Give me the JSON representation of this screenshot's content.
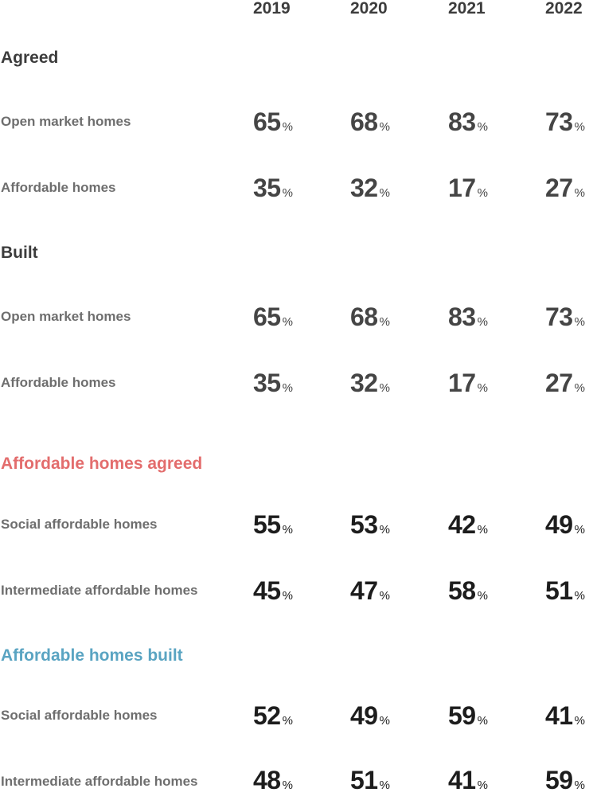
{
  "years": [
    "2019",
    "2020",
    "2021",
    "2022"
  ],
  "unit": "%",
  "colors": {
    "heading_dark": "#3c3c3c",
    "heading_agreed": "#e36d6d",
    "heading_built": "#5aa4c2",
    "label": "#6e6e6e",
    "value_grey": "#454545",
    "value_dark": "#1d1d1d"
  },
  "sections": [
    {
      "title": "Agreed",
      "rows": [
        {
          "label": "Open market homes",
          "values": [
            "65",
            "68",
            "83",
            "73"
          ]
        },
        {
          "label": "Affordable homes",
          "values": [
            "35",
            "32",
            "17",
            "27"
          ]
        }
      ]
    },
    {
      "title": "Built",
      "rows": [
        {
          "label": "Open market homes",
          "values": [
            "65",
            "68",
            "83",
            "73"
          ]
        },
        {
          "label": "Affordable homes",
          "values": [
            "35",
            "32",
            "17",
            "27"
          ]
        }
      ]
    },
    {
      "title": "Affordable homes agreed",
      "rows": [
        {
          "label": "Social affordable homes",
          "values": [
            "55",
            "53",
            "42",
            "49"
          ]
        },
        {
          "label": "Intermediate affordable homes",
          "values": [
            "45",
            "47",
            "58",
            "51"
          ]
        }
      ]
    },
    {
      "title": "Affordable homes built",
      "rows": [
        {
          "label": "Social affordable homes",
          "values": [
            "52",
            "49",
            "59",
            "41"
          ]
        },
        {
          "label": "Intermediate affordable homes",
          "values": [
            "48",
            "51",
            "41",
            "59"
          ]
        }
      ]
    }
  ]
}
